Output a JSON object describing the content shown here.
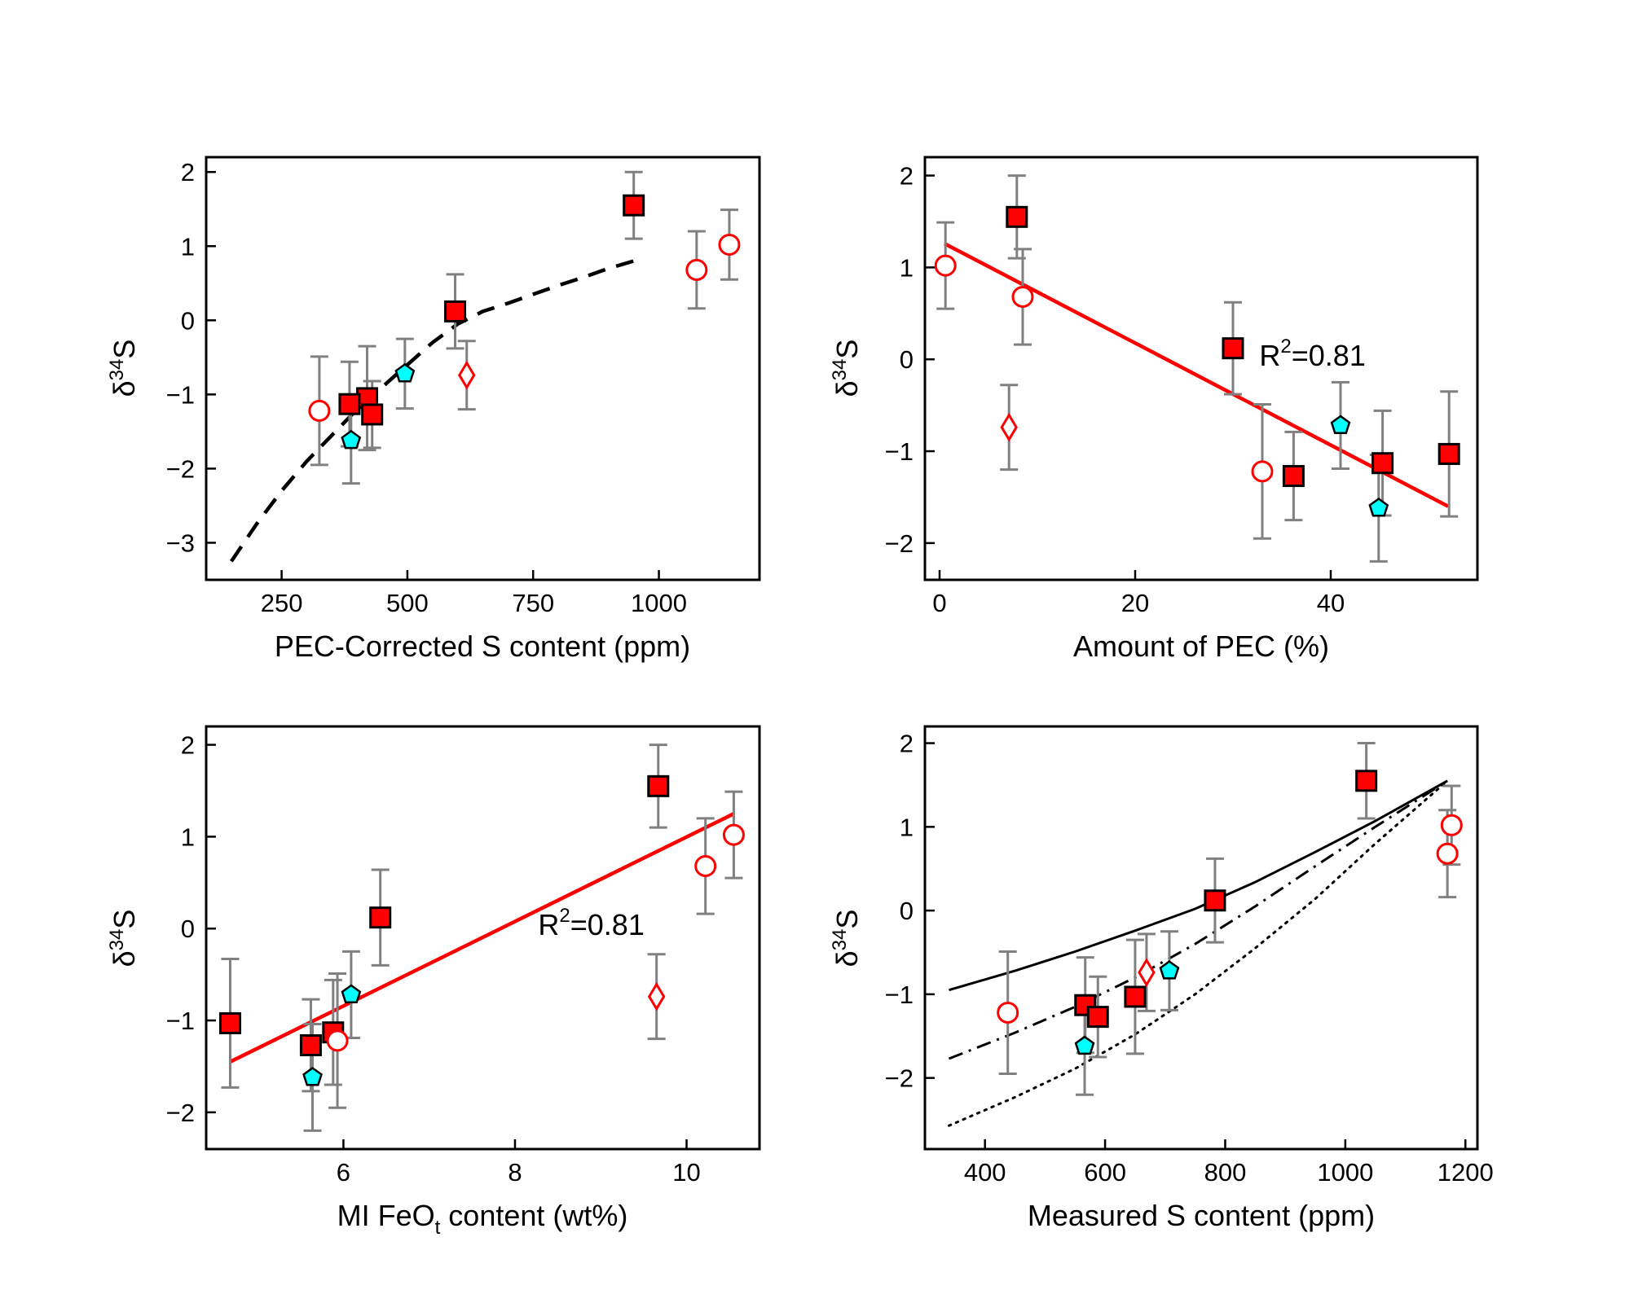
{
  "chart_data": [
    {
      "type": "scatter",
      "panel": "top-left",
      "xlabel": "PEC-Corrected S content (ppm)",
      "ylabel": "δ34S",
      "xlim": [
        100,
        1200
      ],
      "ylim": [
        -3.5,
        2.2
      ],
      "xticks": [
        250,
        500,
        750,
        1000
      ],
      "yticks": [
        -3,
        -2,
        -1,
        0,
        1,
        2
      ],
      "tick_labels": {
        "x": [
          "250",
          "500",
          "750",
          "1000"
        ],
        "y": [
          "−3",
          "−2",
          "−1",
          "0",
          "1",
          "2"
        ]
      },
      "series": [
        {
          "marker": "square",
          "points": [
            {
              "x": 950,
              "y": 1.55,
              "err": 0.45
            },
            {
              "x": 595,
              "y": 0.12,
              "err": 0.5
            },
            {
              "x": 420,
              "y": -1.05,
              "err": 0.7
            },
            {
              "x": 430,
              "y": -1.27,
              "err": 0.45
            },
            {
              "x": 385,
              "y": -1.13,
              "err": 0.57
            }
          ]
        },
        {
          "marker": "open-circle",
          "points": [
            {
              "x": 1140,
              "y": 1.02,
              "err": 0.47
            },
            {
              "x": 1075,
              "y": 0.68,
              "err": 0.52
            },
            {
              "x": 325,
              "y": -1.22,
              "err": 0.73
            }
          ]
        },
        {
          "marker": "pentagon",
          "points": [
            {
              "x": 495,
              "y": -0.72,
              "err": 0.47
            },
            {
              "x": 388,
              "y": -1.62,
              "err": 0.58
            }
          ]
        },
        {
          "marker": "open-diamond",
          "points": [
            {
              "x": 618,
              "y": -0.74,
              "err": 0.46
            }
          ]
        }
      ],
      "curves": [
        {
          "style": "dashed",
          "color": "#000000",
          "points": [
            [
              150,
              -3.25
            ],
            [
              200,
              -2.75
            ],
            [
              250,
              -2.3
            ],
            [
              300,
              -1.9
            ],
            [
              350,
              -1.55
            ],
            [
              400,
              -1.2
            ],
            [
              450,
              -0.9
            ],
            [
              500,
              -0.6
            ],
            [
              550,
              -0.3
            ],
            [
              600,
              -0.05
            ],
            [
              650,
              0.12
            ],
            [
              700,
              0.23
            ],
            [
              750,
              0.35
            ],
            [
              800,
              0.47
            ],
            [
              850,
              0.58
            ],
            [
              900,
              0.7
            ],
            [
              950,
              0.8
            ]
          ]
        }
      ]
    },
    {
      "type": "scatter",
      "panel": "top-right",
      "xlabel": "Amount of PEC (%)",
      "ylabel": "δ34S",
      "xlim": [
        -1.5,
        55
      ],
      "ylim": [
        -2.4,
        2.2
      ],
      "xticks": [
        0,
        20,
        40
      ],
      "yticks": [
        -2,
        -1,
        0,
        1,
        2
      ],
      "tick_labels": {
        "x": [
          "0",
          "20",
          "40"
        ],
        "y": [
          "−2",
          "−1",
          "0",
          "1",
          "2"
        ]
      },
      "annotation": {
        "text": "R",
        "sup": "2",
        "suffix": "=0.81",
        "x": 32.7,
        "y": -0.07
      },
      "series": [
        {
          "marker": "square",
          "points": [
            {
              "x": 7.9,
              "y": 1.55,
              "err": 0.45
            },
            {
              "x": 30.0,
              "y": 0.12,
              "err": 0.5
            },
            {
              "x": 36.2,
              "y": -1.27,
              "err": 0.48
            },
            {
              "x": 45.3,
              "y": -1.13,
              "err": 0.57
            },
            {
              "x": 52.1,
              "y": -1.03,
              "err": 0.68
            }
          ]
        },
        {
          "marker": "open-circle",
          "points": [
            {
              "x": 0.6,
              "y": 1.02,
              "err": 0.47
            },
            {
              "x": 8.5,
              "y": 0.68,
              "err": 0.52
            },
            {
              "x": 33.0,
              "y": -1.22,
              "err": 0.73
            }
          ]
        },
        {
          "marker": "pentagon",
          "points": [
            {
              "x": 41.0,
              "y": -0.72,
              "err": 0.47
            },
            {
              "x": 44.9,
              "y": -1.62,
              "err": 0.58
            }
          ]
        },
        {
          "marker": "open-diamond",
          "points": [
            {
              "x": 7.1,
              "y": -0.74,
              "err": 0.46
            }
          ]
        }
      ],
      "curves": [
        {
          "style": "solid",
          "color": "#ff0000",
          "points": [
            [
              0.5,
              1.26
            ],
            [
              52.0,
              -1.6
            ]
          ]
        }
      ]
    },
    {
      "type": "scatter",
      "panel": "bottom-left",
      "xlabel": "MI FeO",
      "xlabel_sub": "t",
      "xlabel_suffix": " content (wt%)",
      "ylabel": "δ34S",
      "xlim": [
        4.4,
        10.85
      ],
      "ylim": [
        -2.4,
        2.2
      ],
      "xticks": [
        6,
        8,
        10
      ],
      "yticks": [
        -2,
        -1,
        0,
        1,
        2
      ],
      "tick_labels": {
        "x": [
          "6",
          "8",
          "10"
        ],
        "y": [
          "−2",
          "−1",
          "0",
          "1",
          "2"
        ]
      },
      "annotation": {
        "text": "R",
        "sup": "2",
        "suffix": "=0.81",
        "x": 8.27,
        "y": -0.07
      },
      "series": [
        {
          "marker": "square",
          "points": [
            {
              "x": 9.67,
              "y": 1.55,
              "err": 0.45
            },
            {
              "x": 6.43,
              "y": 0.12,
              "err": 0.52
            },
            {
              "x": 4.68,
              "y": -1.03,
              "err": 0.7
            },
            {
              "x": 5.62,
              "y": -1.27,
              "err": 0.5
            },
            {
              "x": 5.88,
              "y": -1.13,
              "err": 0.57
            }
          ]
        },
        {
          "marker": "open-circle",
          "points": [
            {
              "x": 10.55,
              "y": 1.02,
              "err": 0.47
            },
            {
              "x": 10.22,
              "y": 0.68,
              "err": 0.52
            },
            {
              "x": 5.93,
              "y": -1.22,
              "err": 0.73
            }
          ]
        },
        {
          "marker": "pentagon",
          "points": [
            {
              "x": 6.09,
              "y": -0.72,
              "err": 0.47
            },
            {
              "x": 5.64,
              "y": -1.62,
              "err": 0.58
            }
          ]
        },
        {
          "marker": "open-diamond",
          "points": [
            {
              "x": 9.65,
              "y": -0.74,
              "err": 0.46
            }
          ]
        }
      ],
      "curves": [
        {
          "style": "solid",
          "color": "#ff0000",
          "points": [
            [
              4.68,
              -1.45
            ],
            [
              10.55,
              1.25
            ]
          ]
        }
      ]
    },
    {
      "type": "scatter",
      "panel": "bottom-right",
      "xlabel": "Measured S content (ppm)",
      "ylabel": "δ34S",
      "xlim": [
        300,
        1220
      ],
      "ylim": [
        -2.85,
        2.2
      ],
      "xticks": [
        400,
        600,
        800,
        1000,
        1200
      ],
      "yticks": [
        -2,
        -1,
        0,
        1,
        2
      ],
      "tick_labels": {
        "x": [
          "400",
          "600",
          "800",
          "1000",
          "1200"
        ],
        "y": [
          "−2",
          "−1",
          "0",
          "1",
          "2"
        ]
      },
      "series": [
        {
          "marker": "square",
          "points": [
            {
              "x": 1035,
              "y": 1.55,
              "err": 0.45
            },
            {
              "x": 783,
              "y": 0.12,
              "err": 0.5
            },
            {
              "x": 567,
              "y": -1.13,
              "err": 0.57
            },
            {
              "x": 588,
              "y": -1.27,
              "err": 0.48
            },
            {
              "x": 650,
              "y": -1.03,
              "err": 0.68
            }
          ]
        },
        {
          "marker": "open-circle",
          "points": [
            {
              "x": 1177,
              "y": 1.02,
              "err": 0.47
            },
            {
              "x": 1170,
              "y": 0.68,
              "err": 0.52
            },
            {
              "x": 438,
              "y": -1.22,
              "err": 0.73
            }
          ]
        },
        {
          "marker": "pentagon",
          "points": [
            {
              "x": 707,
              "y": -0.72,
              "err": 0.47
            },
            {
              "x": 566,
              "y": -1.62,
              "err": 0.58
            }
          ]
        },
        {
          "marker": "open-diamond",
          "points": [
            {
              "x": 669,
              "y": -0.74,
              "err": 0.46
            }
          ]
        }
      ],
      "curves": [
        {
          "style": "solid",
          "color": "#000000",
          "points": [
            [
              340,
              -0.95
            ],
            [
              450,
              -0.72
            ],
            [
              550,
              -0.49
            ],
            [
              650,
              -0.24
            ],
            [
              750,
              0.02
            ],
            [
              850,
              0.34
            ],
            [
              950,
              0.7
            ],
            [
              1050,
              1.07
            ],
            [
              1170,
              1.55
            ]
          ]
        },
        {
          "style": "dashdot",
          "color": "#000000",
          "points": [
            [
              340,
              -1.77
            ],
            [
              450,
              -1.46
            ],
            [
              550,
              -1.15
            ],
            [
              650,
              -0.8
            ],
            [
              750,
              -0.4
            ],
            [
              850,
              0.05
            ],
            [
              950,
              0.53
            ],
            [
              1050,
              1.0
            ],
            [
              1170,
              1.55
            ]
          ]
        },
        {
          "style": "dotted",
          "color": "#000000",
          "points": [
            [
              340,
              -2.57
            ],
            [
              450,
              -2.23
            ],
            [
              550,
              -1.89
            ],
            [
              650,
              -1.48
            ],
            [
              750,
              -1.0
            ],
            [
              850,
              -0.45
            ],
            [
              950,
              0.14
            ],
            [
              1050,
              0.8
            ],
            [
              1170,
              1.55
            ]
          ]
        }
      ]
    }
  ]
}
